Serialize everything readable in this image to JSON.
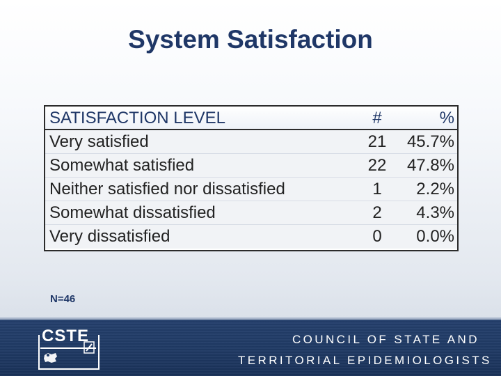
{
  "slide": {
    "title": "System Satisfaction",
    "note": "N=46"
  },
  "table": {
    "columns": [
      "SATISFACTION LEVEL",
      "#",
      "%"
    ],
    "rows": [
      {
        "level": "Very satisfied",
        "count": "21",
        "percent": "45.7%"
      },
      {
        "level": "Somewhat satisfied",
        "count": "22",
        "percent": "47.8%"
      },
      {
        "level": "Neither satisfied nor dissatisfied",
        "count": "1",
        "percent": "2.2%"
      },
      {
        "level": "Somewhat dissatisfied",
        "count": "2",
        "percent": "4.3%"
      },
      {
        "level": "Very dissatisfied",
        "count": "0",
        "percent": "0.0%"
      }
    ]
  },
  "footer": {
    "logo": "CSTE",
    "line1": "COUNCIL OF STATE AND",
    "line2": "TERRITORIAL EPIDEMIOLOGISTS"
  }
}
